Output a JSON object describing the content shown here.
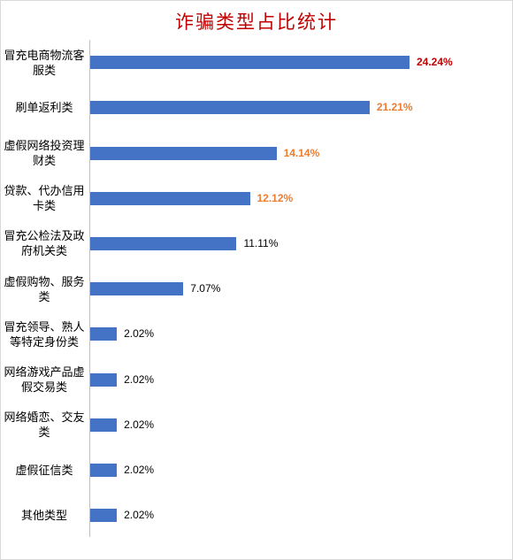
{
  "chart_data": {
    "type": "barh",
    "title": "诈骗类型占比统计",
    "categories": [
      "冒充电商物流客服类",
      "刷单返利类",
      "虚假网络投资理财类",
      "贷款、代办信用卡类",
      "冒充公检法及政府机关类",
      "虚假购物、服务类",
      "冒充领导、熟人等特定身份类",
      "网络游戏产品虚假交易类",
      "网络婚恋、交友类",
      "虚假征信类",
      "其他类型"
    ],
    "values": [
      24.24,
      21.21,
      14.14,
      12.12,
      11.11,
      7.07,
      2.02,
      2.02,
      2.02,
      2.02,
      2.02
    ],
    "value_labels": [
      "24.24%",
      "21.21%",
      "14.14%",
      "12.12%",
      "11.11%",
      "7.07%",
      "2.02%",
      "2.02%",
      "2.02%",
      "2.02%",
      "2.02%"
    ],
    "color": "#4472c4",
    "value_label_colors": [
      "#c00000",
      "#ed7d31",
      "#ed7d31",
      "#ed7d31",
      "#000000",
      "#000000",
      "#000000",
      "#000000",
      "#000000",
      "#000000",
      "#000000"
    ]
  }
}
